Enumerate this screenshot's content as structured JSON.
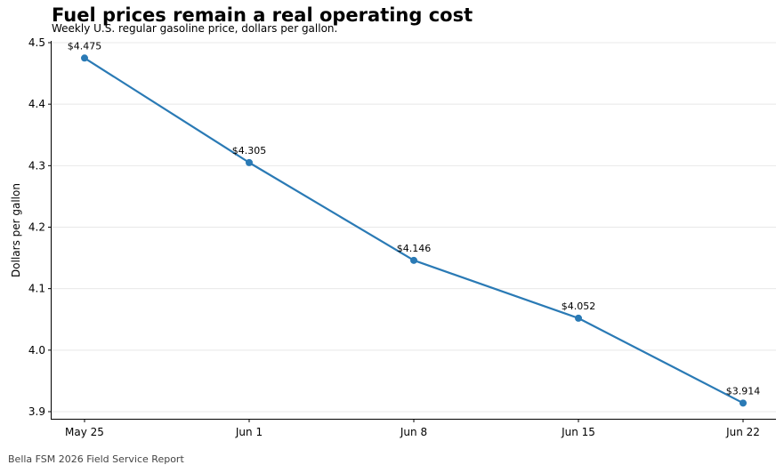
{
  "chart_data": {
    "type": "line",
    "title": "Fuel prices remain a real operating cost",
    "subtitle": "Weekly U.S. regular gasoline price, dollars per gallon.",
    "xlabel": "",
    "ylabel": "Dollars per gallon",
    "categories": [
      "May 25",
      "Jun 1",
      "Jun 8",
      "Jun 15",
      "Jun 22"
    ],
    "series": [
      {
        "values": [
          4.475,
          4.305,
          4.146,
          4.052,
          3.914
        ],
        "data_labels": [
          "$4.475",
          "$4.305",
          "$4.146",
          "$4.052",
          "$3.914"
        ]
      }
    ],
    "ylim": [
      3.9,
      4.5
    ],
    "yticks": [
      "3.9",
      "4.0",
      "4.1",
      "4.2",
      "4.3",
      "4.4",
      "4.5"
    ],
    "grid": "horizontal",
    "color": "#2a7ab5"
  },
  "footer": "Bella FSM 2026 Field Service Report"
}
